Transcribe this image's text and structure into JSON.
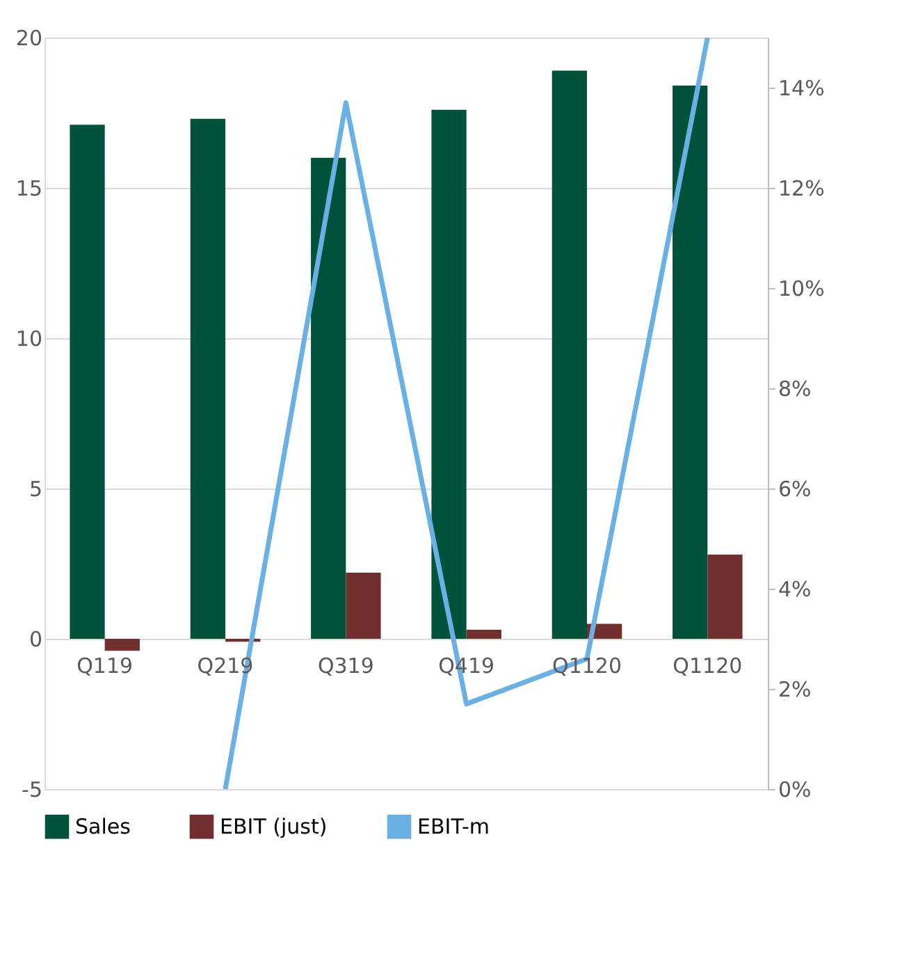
{
  "chart_data": {
    "type": "bar",
    "categories": [
      "Q119",
      "Q219",
      "Q319",
      "Q419",
      "Q1120",
      "Q1120"
    ],
    "series": [
      {
        "name": "Sales",
        "color": "#00533a",
        "values": [
          17.1,
          17.3,
          16.0,
          17.6,
          18.9,
          18.4
        ]
      },
      {
        "name": "EBIT (just)",
        "color": "#722f30",
        "values": [
          -0.4,
          -0.1,
          2.2,
          0.3,
          0.5,
          2.8
        ]
      },
      {
        "name": "EBIT-m",
        "color": "#6ab0e4",
        "type": "line",
        "axis": "y2",
        "values": [
          null,
          0,
          13.7,
          1.7,
          2.6,
          15
        ]
      }
    ],
    "ylim": [
      -5,
      20
    ],
    "yticks": [
      -5,
      0,
      5,
      10,
      15,
      20
    ],
    "y2lim": [
      0,
      15
    ],
    "y2ticks": [
      {
        "value": 0,
        "label": "0%"
      },
      {
        "value": 2,
        "label": "2%"
      },
      {
        "value": 4,
        "label": "4%"
      },
      {
        "value": 6,
        "label": "6%"
      },
      {
        "value": 8,
        "label": "8%"
      },
      {
        "value": 10,
        "label": "10%"
      },
      {
        "value": 12,
        "label": "12%"
      },
      {
        "value": 14,
        "label": "14%"
      }
    ],
    "grid": "y",
    "legend": "bottom",
    "marker": "none",
    "line_style": "solid"
  }
}
